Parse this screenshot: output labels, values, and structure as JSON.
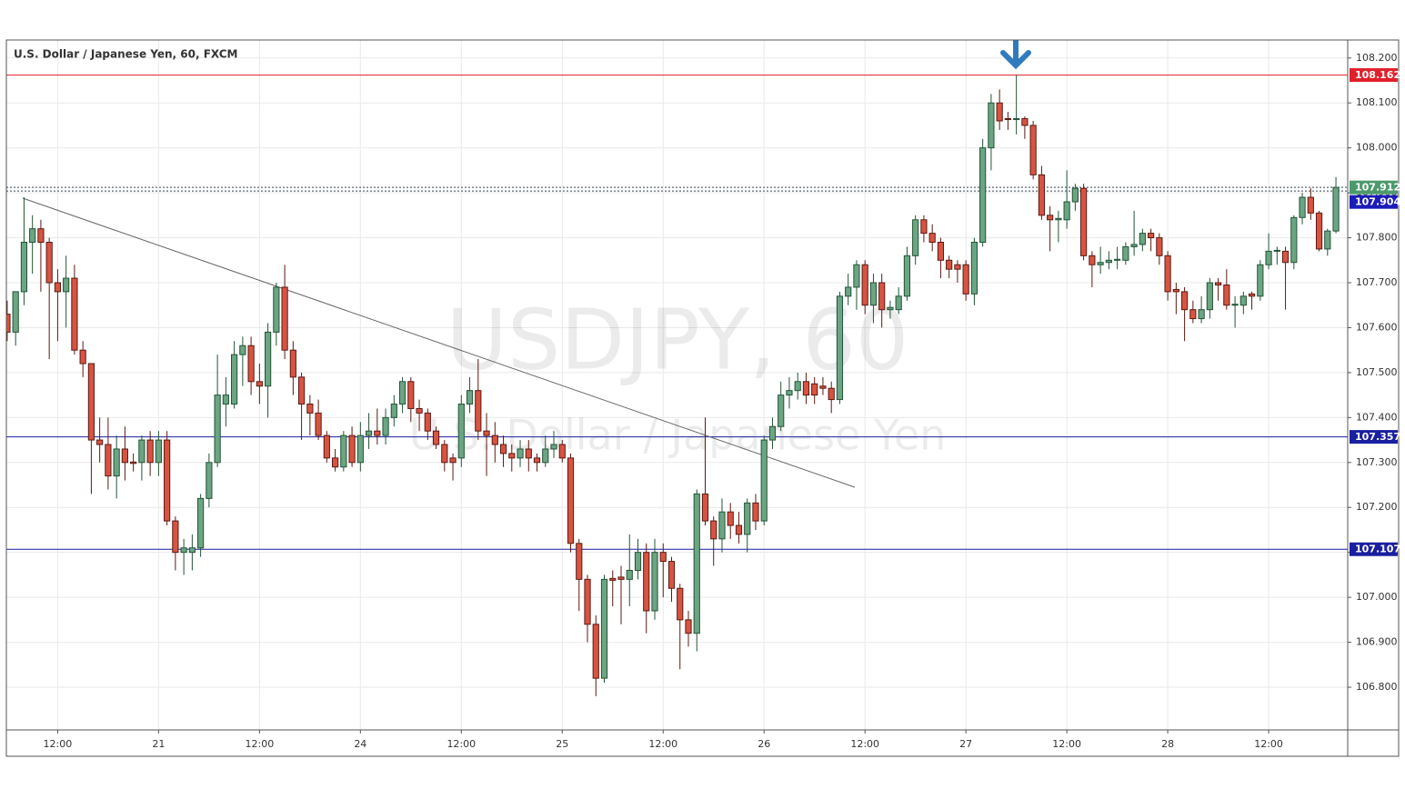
{
  "chart_data": {
    "type": "candlestick",
    "title": "U.S. Dollar / Japanese Yen, 60, FXCM",
    "watermark": "USDJPY, 60",
    "watermark_subtitle": "U.S. Dollar / Japanese Yen",
    "up_color": "#6ba583",
    "down_color": "#d75442",
    "ylim": [
      106.705,
      108.24
    ],
    "yticks": [
      {
        "value": 106.8,
        "label": "106.800"
      },
      {
        "value": 106.9,
        "label": "106.900"
      },
      {
        "value": 107.0,
        "label": "107.000"
      },
      {
        "value": 107.1,
        "label": "107.100"
      },
      {
        "value": 107.2,
        "label": "107.200"
      },
      {
        "value": 107.3,
        "label": "107.300"
      },
      {
        "value": 107.4,
        "label": "107.400"
      },
      {
        "value": 107.5,
        "label": "107.500"
      },
      {
        "value": 107.6,
        "label": "107.600"
      },
      {
        "value": 107.7,
        "label": "107.700"
      },
      {
        "value": 107.8,
        "label": "107.800"
      },
      {
        "value": 107.9,
        "label": "107.900"
      },
      {
        "value": 108.0,
        "label": "108.000"
      },
      {
        "value": 108.1,
        "label": "108.100"
      },
      {
        "value": 108.2,
        "label": "108.200"
      }
    ],
    "xlim": [
      -0.1,
      159.4
    ],
    "xticks": [
      {
        "value": 6,
        "label": "12:00"
      },
      {
        "value": 18,
        "label": "21"
      },
      {
        "value": 30,
        "label": "12:00"
      },
      {
        "value": 42,
        "label": "24"
      },
      {
        "value": 54,
        "label": "12:00"
      },
      {
        "value": 66,
        "label": "25"
      },
      {
        "value": 78,
        "label": "12:00"
      },
      {
        "value": 90,
        "label": "26"
      },
      {
        "value": 102,
        "label": "12:00"
      },
      {
        "value": 114,
        "label": "27"
      },
      {
        "value": 126,
        "label": "12:00"
      },
      {
        "value": 138,
        "label": "28"
      },
      {
        "value": 150,
        "label": "12:00"
      }
    ],
    "grid": true,
    "levels": [
      {
        "value": 108.162,
        "color": "#e0202a",
        "style": "solid"
      },
      {
        "value": 107.912,
        "color": "#4c9a6c",
        "style": "dotted"
      },
      {
        "value": 107.904,
        "color": "#1c1cb8",
        "style": "dotted"
      },
      {
        "value": 107.357,
        "color": "#1a1fa0",
        "style": "solid"
      },
      {
        "value": 107.107,
        "color": "#1a1fa0",
        "style": "solid"
      }
    ],
    "ohlc": [
      [
        107.63,
        107.66,
        107.57,
        107.59
      ],
      [
        107.59,
        107.68,
        107.56,
        107.68
      ],
      [
        107.68,
        107.89,
        107.65,
        107.79
      ],
      [
        107.79,
        107.85,
        107.72,
        107.82
      ],
      [
        107.82,
        107.84,
        107.68,
        107.79
      ],
      [
        107.79,
        107.8,
        107.53,
        107.7
      ],
      [
        107.7,
        107.73,
        107.57,
        107.68
      ],
      [
        107.68,
        107.76,
        107.6,
        107.71
      ],
      [
        107.71,
        107.74,
        107.54,
        107.55
      ],
      [
        107.55,
        107.57,
        107.49,
        107.52
      ],
      [
        107.52,
        107.52,
        107.23,
        107.35
      ],
      [
        107.35,
        107.4,
        107.3,
        107.34
      ],
      [
        107.34,
        107.4,
        107.24,
        107.27
      ],
      [
        107.27,
        107.36,
        107.22,
        107.33
      ],
      [
        107.33,
        107.38,
        107.26,
        107.3
      ],
      [
        107.301,
        107.32,
        107.28,
        107.298
      ],
      [
        107.3,
        107.36,
        107.26,
        107.35
      ],
      [
        107.35,
        107.37,
        107.27,
        107.3
      ],
      [
        107.3,
        107.37,
        107.27,
        107.35
      ],
      [
        107.35,
        107.37,
        107.16,
        107.17
      ],
      [
        107.17,
        107.18,
        107.06,
        107.1
      ],
      [
        107.1,
        107.13,
        107.05,
        107.11
      ],
      [
        107.1,
        107.14,
        107.06,
        107.11
      ],
      [
        107.11,
        107.23,
        107.09,
        107.22
      ],
      [
        107.22,
        107.32,
        107.2,
        107.3
      ],
      [
        107.3,
        107.54,
        107.29,
        107.45
      ],
      [
        107.43,
        107.49,
        107.38,
        107.45
      ],
      [
        107.43,
        107.57,
        107.42,
        107.54
      ],
      [
        107.54,
        107.58,
        107.47,
        107.56
      ],
      [
        107.56,
        107.58,
        107.45,
        107.48
      ],
      [
        107.48,
        107.52,
        107.43,
        107.47
      ],
      [
        107.47,
        107.61,
        107.4,
        107.59
      ],
      [
        107.59,
        107.7,
        107.56,
        107.69
      ],
      [
        107.69,
        107.74,
        107.53,
        107.55
      ],
      [
        107.55,
        107.57,
        107.45,
        107.49
      ],
      [
        107.49,
        107.5,
        107.35,
        107.43
      ],
      [
        107.43,
        107.45,
        107.36,
        107.41
      ],
      [
        107.41,
        107.44,
        107.35,
        107.36
      ],
      [
        107.36,
        107.37,
        107.3,
        107.31
      ],
      [
        107.31,
        107.33,
        107.28,
        107.29
      ],
      [
        107.29,
        107.37,
        107.28,
        107.36
      ],
      [
        107.36,
        107.38,
        107.29,
        107.3
      ],
      [
        107.3,
        107.39,
        107.28,
        107.36
      ],
      [
        107.36,
        107.41,
        107.33,
        107.37
      ],
      [
        107.37,
        107.42,
        107.34,
        107.36
      ],
      [
        107.36,
        107.42,
        107.34,
        107.4
      ],
      [
        107.4,
        107.45,
        107.38,
        107.43
      ],
      [
        107.43,
        107.49,
        107.41,
        107.48
      ],
      [
        107.48,
        107.49,
        107.39,
        107.42
      ],
      [
        107.42,
        107.44,
        107.37,
        107.41
      ],
      [
        107.41,
        107.42,
        107.35,
        107.37
      ],
      [
        107.37,
        107.38,
        107.33,
        107.34
      ],
      [
        107.34,
        107.35,
        107.28,
        107.3
      ],
      [
        107.31,
        107.32,
        107.26,
        107.3
      ],
      [
        107.31,
        107.45,
        107.29,
        107.43
      ],
      [
        107.43,
        107.49,
        107.41,
        107.46
      ],
      [
        107.46,
        107.53,
        107.35,
        107.37
      ],
      [
        107.37,
        107.41,
        107.27,
        107.36
      ],
      [
        107.36,
        107.39,
        107.3,
        107.34
      ],
      [
        107.34,
        107.36,
        107.29,
        107.32
      ],
      [
        107.32,
        107.34,
        107.28,
        107.31
      ],
      [
        107.31,
        107.35,
        107.29,
        107.33
      ],
      [
        107.33,
        107.35,
        107.28,
        107.31
      ],
      [
        107.31,
        107.32,
        107.28,
        107.3
      ],
      [
        107.3,
        107.36,
        107.29,
        107.33
      ],
      [
        107.33,
        107.37,
        107.31,
        107.34
      ],
      [
        107.34,
        107.35,
        107.3,
        107.31
      ],
      [
        107.31,
        107.32,
        107.1,
        107.12
      ],
      [
        107.12,
        107.13,
        106.97,
        107.04
      ],
      [
        107.04,
        107.05,
        106.9,
        106.94
      ],
      [
        106.94,
        106.96,
        106.78,
        106.82
      ],
      [
        106.82,
        107.05,
        106.81,
        107.04
      ],
      [
        107.042,
        107.06,
        106.98,
        107.038
      ],
      [
        107.045,
        107.07,
        106.94,
        107.04
      ],
      [
        107.04,
        107.14,
        106.98,
        107.06
      ],
      [
        107.06,
        107.13,
        107.04,
        107.1
      ],
      [
        107.1,
        107.12,
        106.92,
        106.97
      ],
      [
        106.97,
        107.13,
        106.95,
        107.1
      ],
      [
        107.1,
        107.12,
        107.0,
        107.08
      ],
      [
        107.08,
        107.09,
        106.99,
        107.02
      ],
      [
        107.02,
        107.03,
        106.84,
        106.95
      ],
      [
        106.95,
        106.97,
        106.89,
        106.92
      ],
      [
        106.92,
        107.24,
        106.88,
        107.23
      ],
      [
        107.23,
        107.4,
        107.16,
        107.17
      ],
      [
        107.17,
        107.18,
        107.07,
        107.13
      ],
      [
        107.13,
        107.22,
        107.1,
        107.19
      ],
      [
        107.19,
        107.21,
        107.13,
        107.16
      ],
      [
        107.16,
        107.19,
        107.12,
        107.14
      ],
      [
        107.14,
        107.22,
        107.1,
        107.21
      ],
      [
        107.21,
        107.23,
        107.15,
        107.17
      ],
      [
        107.17,
        107.36,
        107.16,
        107.35
      ],
      [
        107.35,
        107.4,
        107.33,
        107.38
      ],
      [
        107.38,
        107.48,
        107.37,
        107.45
      ],
      [
        107.45,
        107.49,
        107.42,
        107.46
      ],
      [
        107.46,
        107.5,
        107.44,
        107.48
      ],
      [
        107.48,
        107.5,
        107.43,
        107.45
      ],
      [
        107.475,
        107.49,
        107.43,
        107.45
      ],
      [
        107.47,
        107.49,
        107.45,
        107.465
      ],
      [
        107.465,
        107.48,
        107.41,
        107.44
      ],
      [
        107.44,
        107.68,
        107.43,
        107.67
      ],
      [
        107.67,
        107.72,
        107.65,
        107.69
      ],
      [
        107.69,
        107.75,
        107.64,
        107.74
      ],
      [
        107.74,
        107.75,
        107.63,
        107.65
      ],
      [
        107.65,
        107.72,
        107.61,
        107.7
      ],
      [
        107.7,
        107.72,
        107.6,
        107.64
      ],
      [
        107.64,
        107.66,
        107.62,
        107.645
      ],
      [
        107.64,
        107.69,
        107.63,
        107.67
      ],
      [
        107.67,
        107.78,
        107.66,
        107.76
      ],
      [
        107.76,
        107.85,
        107.74,
        107.84
      ],
      [
        107.84,
        107.85,
        107.79,
        107.81
      ],
      [
        107.81,
        107.83,
        107.77,
        107.79
      ],
      [
        107.79,
        107.8,
        107.71,
        107.75
      ],
      [
        107.75,
        107.76,
        107.71,
        107.73
      ],
      [
        107.74,
        107.75,
        107.7,
        107.73
      ],
      [
        107.74,
        107.75,
        107.66,
        107.675
      ],
      [
        107.675,
        107.8,
        107.65,
        107.79
      ],
      [
        107.79,
        108.02,
        107.78,
        108.0
      ],
      [
        108.0,
        108.12,
        107.95,
        108.1
      ],
      [
        108.1,
        108.13,
        108.04,
        108.06
      ],
      [
        108.065,
        108.08,
        108.04,
        108.063
      ],
      [
        108.063,
        108.162,
        108.03,
        108.065
      ],
      [
        108.065,
        108.07,
        108.02,
        108.05
      ],
      [
        108.05,
        108.06,
        107.93,
        107.94
      ],
      [
        107.94,
        107.96,
        107.84,
        107.85
      ],
      [
        107.85,
        107.87,
        107.77,
        107.84
      ],
      [
        107.84,
        107.86,
        107.79,
        107.843
      ],
      [
        107.84,
        107.95,
        107.82,
        107.88
      ],
      [
        107.88,
        107.92,
        107.86,
        107.91
      ],
      [
        107.91,
        107.92,
        107.75,
        107.76
      ],
      [
        107.76,
        107.77,
        107.69,
        107.74
      ],
      [
        107.74,
        107.78,
        107.72,
        107.745
      ],
      [
        107.745,
        107.77,
        107.73,
        107.75
      ],
      [
        107.75,
        107.78,
        107.73,
        107.752
      ],
      [
        107.75,
        107.79,
        107.74,
        107.78
      ],
      [
        107.78,
        107.86,
        107.76,
        107.785
      ],
      [
        107.785,
        107.82,
        107.77,
        107.81
      ],
      [
        107.81,
        107.82,
        107.77,
        107.8
      ],
      [
        107.8,
        107.81,
        107.74,
        107.76
      ],
      [
        107.76,
        107.77,
        107.66,
        107.68
      ],
      [
        107.685,
        107.7,
        107.63,
        107.68
      ],
      [
        107.68,
        107.69,
        107.57,
        107.64
      ],
      [
        107.64,
        107.66,
        107.61,
        107.62
      ],
      [
        107.62,
        107.67,
        107.61,
        107.64
      ],
      [
        107.64,
        107.71,
        107.62,
        107.7
      ],
      [
        107.7,
        107.71,
        107.66,
        107.695
      ],
      [
        107.695,
        107.73,
        107.64,
        107.65
      ],
      [
        107.65,
        107.67,
        107.6,
        107.652
      ],
      [
        107.65,
        107.68,
        107.63,
        107.67
      ],
      [
        107.675,
        107.68,
        107.64,
        107.67
      ],
      [
        107.67,
        107.75,
        107.66,
        107.74
      ],
      [
        107.74,
        107.81,
        107.73,
        107.77
      ],
      [
        107.77,
        107.78,
        107.74,
        107.772
      ],
      [
        107.77,
        107.78,
        107.64,
        107.745
      ],
      [
        107.745,
        107.85,
        107.73,
        107.845
      ],
      [
        107.845,
        107.9,
        107.83,
        107.89
      ],
      [
        107.89,
        107.91,
        107.84,
        107.855
      ],
      [
        107.855,
        107.86,
        107.77,
        107.775
      ],
      [
        107.775,
        107.82,
        107.76,
        107.815
      ],
      [
        107.815,
        107.935,
        107.81,
        107.912
      ]
    ]
  }
}
